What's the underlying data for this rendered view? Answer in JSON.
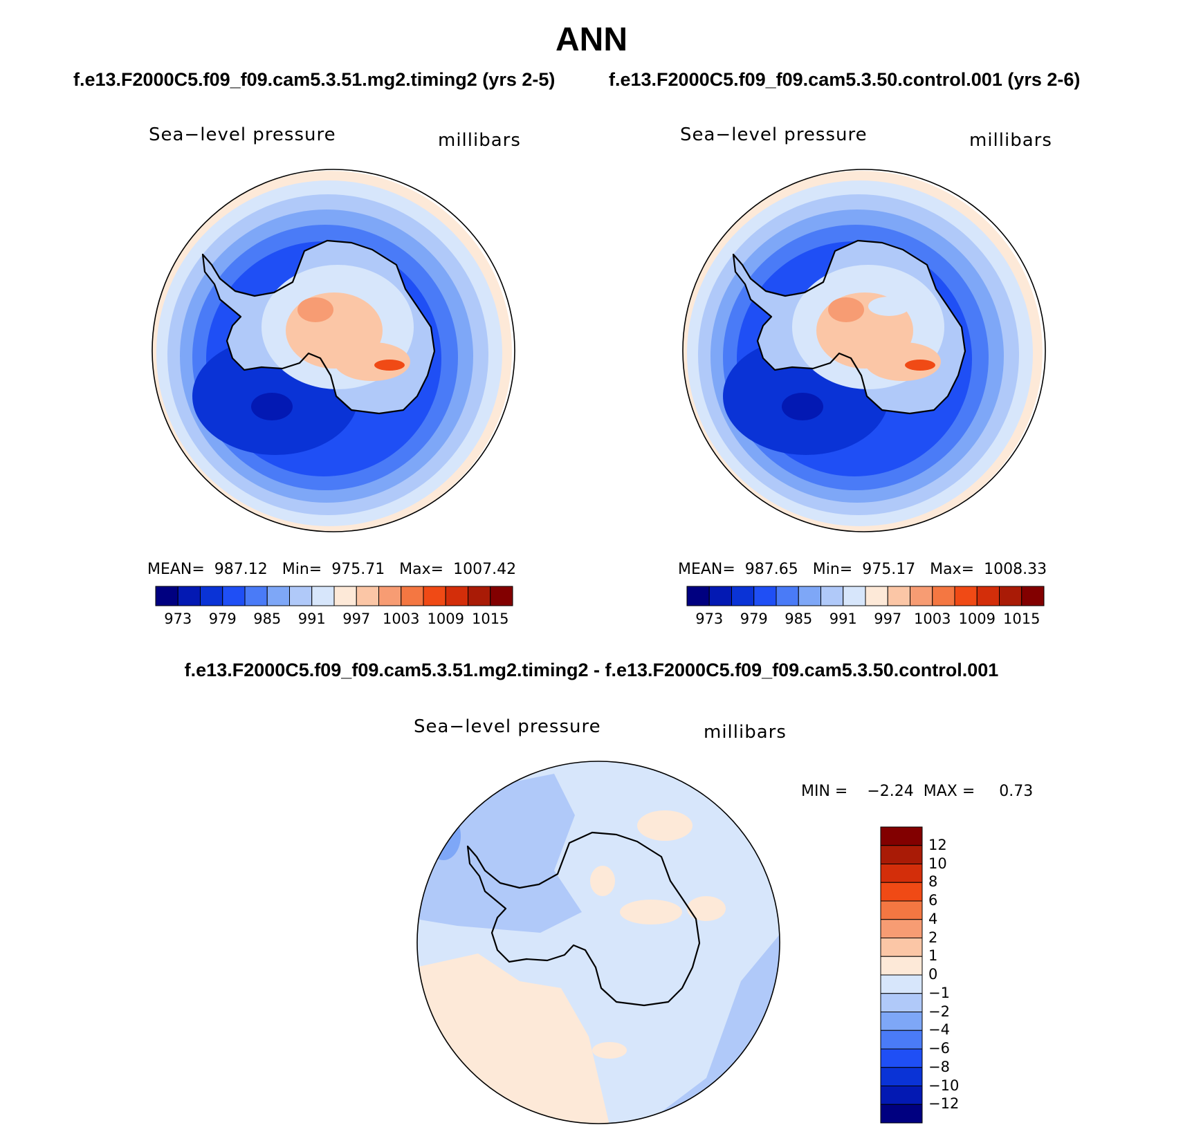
{
  "main_title": "ANN",
  "case_titles": {
    "left": "f.e13.F2000C5.f09_f09.cam5.3.51.mg2.timing2 (yrs 2-5)",
    "right": "f.e13.F2000C5.f09_f09.cam5.3.50.control.001 (yrs 2-6)"
  },
  "diff_title": "f.e13.F2000C5.f09_f09.cam5.3.51.mg2.timing2 - f.e13.F2000C5.f09_f09.cam5.3.50.control.001",
  "panels": [
    {
      "variable": "Sea−level pressure",
      "units": "millibars",
      "stats_text": "MEAN=  987.12   Min=  975.71   Max=  1007.42",
      "mean": 987.12,
      "min": 975.71,
      "max": 1007.42
    },
    {
      "variable": "Sea−level pressure",
      "units": "millibars",
      "stats_text": "MEAN=  987.65   Min=  975.17   Max=  1008.33",
      "mean": 987.65,
      "min": 975.17,
      "max": 1008.33
    }
  ],
  "diff_panel": {
    "variable": "Sea−level pressure",
    "units": "millibars",
    "stats_text": "MIN =    −2.24  MAX =     0.73",
    "min": -2.24,
    "max": 0.73
  },
  "colorbar": {
    "colors": [
      "#000080",
      "#0319b3",
      "#0a33d6",
      "#1f4ff5",
      "#4a7bf7",
      "#7ea7f7",
      "#b0c9f9",
      "#d7e6fb",
      "#fde9d8",
      "#fbc6a6",
      "#f79c73",
      "#f47742",
      "#f04a15",
      "#d32e0a",
      "#a91b06",
      "#820000"
    ],
    "tick_labels": [
      "973",
      "979",
      "985",
      "991",
      "997",
      "1003",
      "1009",
      "1015"
    ]
  },
  "diff_colorbar": {
    "colors": [
      "#000080",
      "#0319b3",
      "#0a33d6",
      "#1f4ff5",
      "#4a7bf7",
      "#7ea7f7",
      "#b0c9f9",
      "#d7e6fb",
      "#fde9d8",
      "#fbc6a6",
      "#f79c73",
      "#f47742",
      "#f04a15",
      "#d32e0a",
      "#a91b06",
      "#820000"
    ],
    "tick_labels": [
      "12",
      "10",
      "8",
      "6",
      "4",
      "2",
      "1",
      "0",
      "−1",
      "−2",
      "−4",
      "−6",
      "−8",
      "−10",
      "−12"
    ]
  },
  "map_colors": {
    "outer": "#fde9d8",
    "ring1": "#d7e6fb",
    "ring2": "#b0c9f9",
    "ring3": "#7ea7f7",
    "ring4": "#4a7bf7",
    "ring5": "#1f4ff5",
    "low": "#0a33d6",
    "lowest": "#0319b3",
    "land_low": "#b0c9f9",
    "land_mid": "#d7e6fb",
    "land_high": "#fbc6a6",
    "land_peak": "#f79c73",
    "land_max": "#f04a15"
  }
}
